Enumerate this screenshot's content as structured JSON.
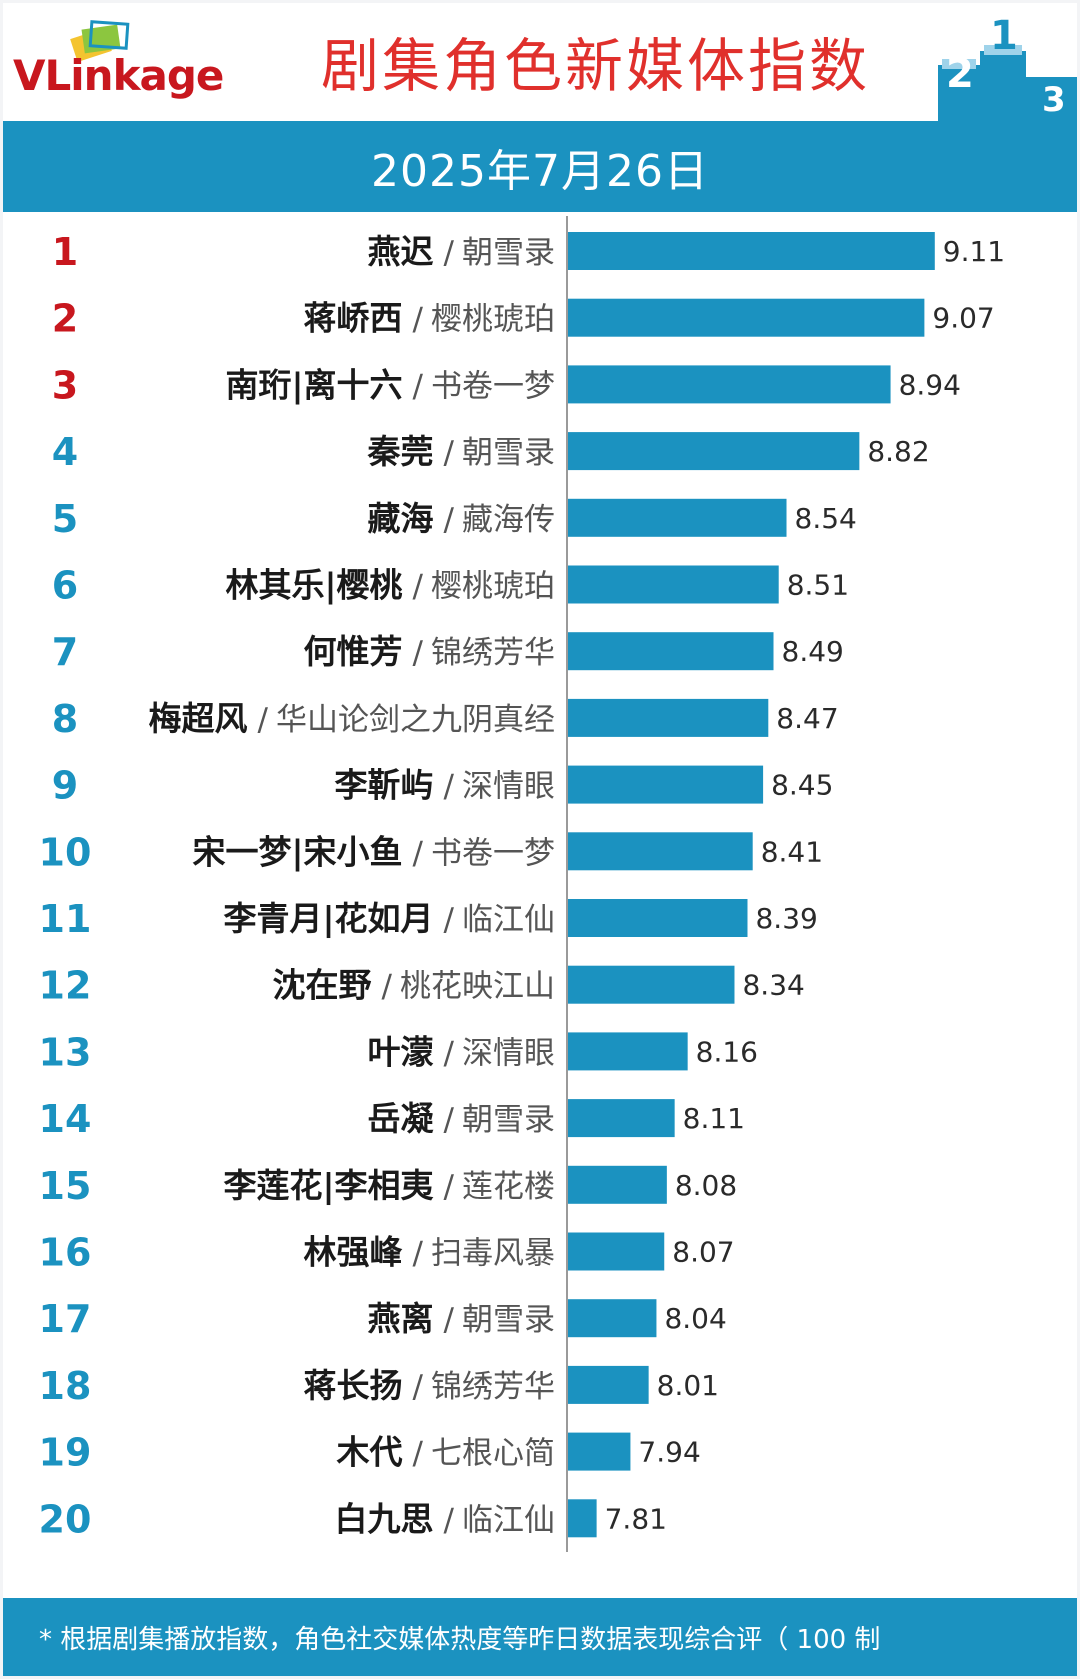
{
  "logo": {
    "text_v": "V",
    "text_rest": "Linkage"
  },
  "header": {
    "title": "剧集角色新媒体指数"
  },
  "date": "2025年7月26日",
  "footer": {
    "note": "* 根据剧集播放指数，角色社交媒体热度等昨日数据表现综合评（ 100 制"
  },
  "colors": {
    "bar": "#1b92c0",
    "band": "#1b92c0",
    "rank_top3": "#c8171e",
    "rank_other": "#1b92c0",
    "title": "#e0302c"
  },
  "chart_data": {
    "type": "bar",
    "orientation": "horizontal",
    "xlim": [
      7.7,
      9.18
    ],
    "ranks": [
      "1",
      "2",
      "3",
      "4",
      "5",
      "6",
      "7",
      "8",
      "9",
      "10",
      "11",
      "12",
      "13",
      "14",
      "15",
      "16",
      "17",
      "18",
      "19",
      "20"
    ],
    "characters": [
      "燕迟",
      "蒋峤西",
      "南珩|离十六",
      "秦莞",
      "藏海",
      "林其乐|樱桃",
      "何惟芳",
      "梅超风",
      "李靳屿",
      "宋一梦|宋小鱼",
      "李青月|花如月",
      "沈在野",
      "叶濛",
      "岳凝",
      "李莲花|李相夷",
      "林强峰",
      "燕离",
      "蒋长扬",
      "木代",
      "白九思"
    ],
    "shows": [
      "朝雪录",
      "樱桃琥珀",
      "书卷一梦",
      "朝雪录",
      "藏海传",
      "樱桃琥珀",
      "锦绣芳华",
      "华山论剑之九阴真经",
      "深情眼",
      "书卷一梦",
      "临江仙",
      "桃花映江山",
      "深情眼",
      "朝雪录",
      "莲花楼",
      "扫毒风暴",
      "朝雪录",
      "锦绣芳华",
      "七根心简",
      "临江仙"
    ],
    "separator": "/",
    "values": [
      9.11,
      9.07,
      8.94,
      8.82,
      8.54,
      8.51,
      8.49,
      8.47,
      8.45,
      8.41,
      8.39,
      8.34,
      8.16,
      8.11,
      8.08,
      8.07,
      8.04,
      8.01,
      7.94,
      7.81
    ],
    "value_labels": [
      "9.11",
      "9.07",
      "8.94",
      "8.82",
      "8.54",
      "8.51",
      "8.49",
      "8.47",
      "8.45",
      "8.41",
      "8.39",
      "8.34",
      "8.16",
      "8.11",
      "8.08",
      "8.07",
      "8.04",
      "8.01",
      "7.94",
      "7.81"
    ]
  }
}
